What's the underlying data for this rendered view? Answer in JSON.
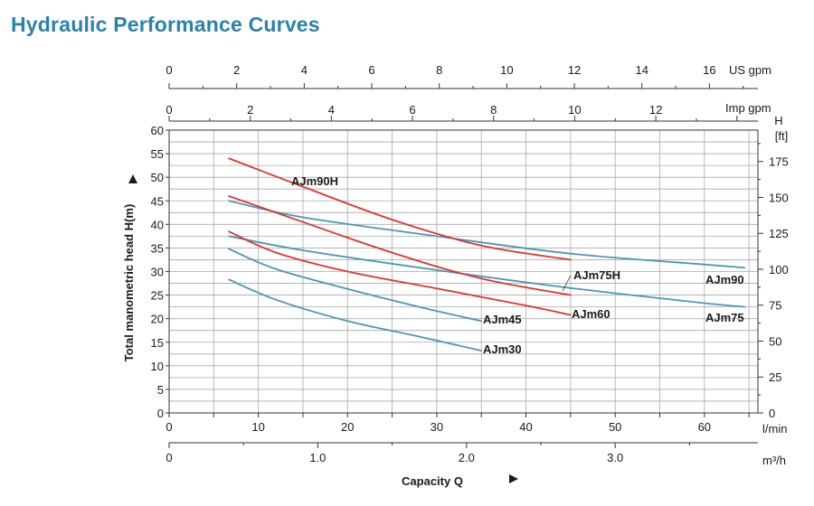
{
  "title": "Hydraulic Performance Curves",
  "colors": {
    "title": "#2a82ad",
    "red": "#e0352b",
    "blue": "#4a97b8",
    "grid": "#a9a9a9"
  },
  "chart_data": {
    "type": "line",
    "xlabel": "Capacity Q",
    "ylabel": "Total manometric head H(m)",
    "x_unit": "l/min",
    "xlim": [
      0,
      66
    ],
    "ylim": [
      0,
      60
    ],
    "grid": true,
    "x_ticks": [
      0,
      10,
      20,
      30,
      40,
      50,
      60
    ],
    "y_ticks": [
      0,
      5,
      10,
      15,
      20,
      25,
      30,
      35,
      40,
      45,
      50,
      55,
      60
    ],
    "secondary_axes": {
      "us_gpm": {
        "unit": "US gpm",
        "ticks": [
          0,
          2,
          4,
          6,
          8,
          10,
          12,
          14,
          16
        ]
      },
      "imp_gpm": {
        "unit": "Imp gpm",
        "ticks": [
          0,
          2,
          4,
          6,
          8,
          10,
          12
        ]
      },
      "m3h": {
        "unit": "m³/h",
        "ticks": [
          "0",
          "1.0",
          "2.0",
          "3.0"
        ]
      },
      "ft": {
        "unit_line1": "H",
        "unit_line2": "[ft]",
        "ticks": [
          0,
          25,
          50,
          75,
          100,
          125,
          150,
          175
        ]
      }
    },
    "series": [
      {
        "name": "AJm90H",
        "color": "red",
        "x": [
          6.7,
          15,
          25,
          35,
          45
        ],
        "y": [
          54,
          48,
          41,
          35.5,
          32.5
        ]
      },
      {
        "name": "AJm90",
        "color": "blue",
        "x": [
          6.7,
          15,
          30,
          45,
          60,
          64.5
        ],
        "y": [
          45,
          41.5,
          37.5,
          33.8,
          31.5,
          30.8
        ]
      },
      {
        "name": "AJm75H",
        "color": "red",
        "x": [
          6.7,
          15,
          25,
          35,
          45
        ],
        "y": [
          46,
          40.5,
          34,
          28.5,
          25
        ]
      },
      {
        "name": "AJm75",
        "color": "blue",
        "x": [
          6.7,
          15,
          30,
          45,
          60,
          64.5
        ],
        "y": [
          37.5,
          34.5,
          30.3,
          26.5,
          23.3,
          22.5
        ]
      },
      {
        "name": "AJm60",
        "color": "red",
        "x": [
          6.7,
          12,
          20,
          30,
          40,
          45
        ],
        "y": [
          38.5,
          34,
          30,
          26.4,
          22.8,
          20.8
        ]
      },
      {
        "name": "AJm45",
        "color": "blue",
        "x": [
          6.7,
          12,
          20,
          28,
          35
        ],
        "y": [
          34.8,
          30.5,
          26.3,
          22.5,
          19.5
        ]
      },
      {
        "name": "AJm30",
        "color": "blue",
        "x": [
          6.7,
          12,
          20,
          28,
          35
        ],
        "y": [
          28.3,
          24,
          19.5,
          16.2,
          13.2
        ]
      }
    ]
  }
}
